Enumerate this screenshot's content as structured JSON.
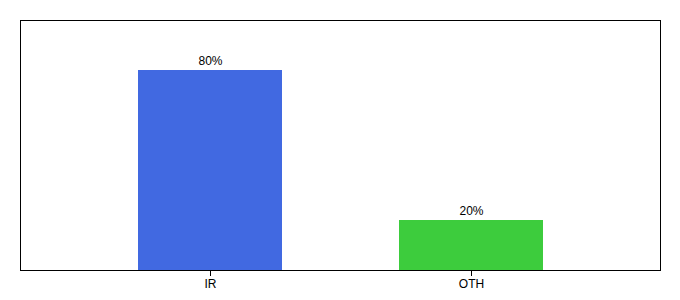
{
  "chart_data": {
    "type": "bar",
    "categories": [
      "IR",
      "OTH"
    ],
    "values": [
      80,
      20
    ],
    "value_labels": [
      "80%",
      "20%"
    ],
    "data_labels": true,
    "colors": [
      "#4169e1",
      "#3dcc3d"
    ],
    "ylim": [
      0,
      100
    ],
    "tick_labels": "x"
  }
}
